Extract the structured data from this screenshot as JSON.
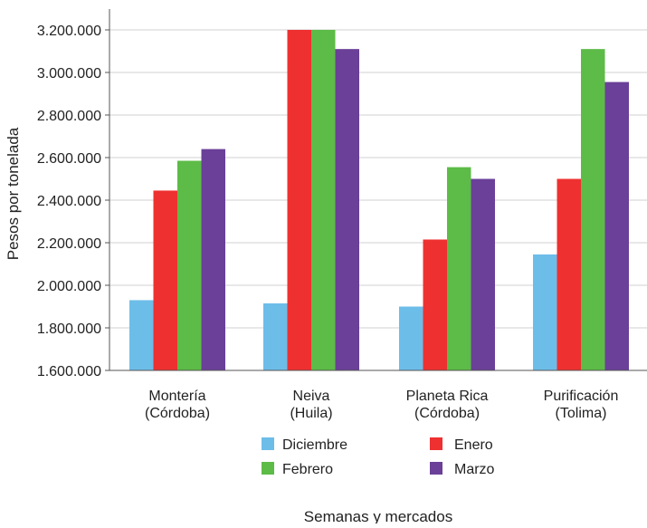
{
  "chart_data": {
    "type": "bar",
    "title": "",
    "xlabel": "Semanas y mercados",
    "ylabel": "Pesos por tonelada",
    "ylim": [
      1600000,
      3200000
    ],
    "yticks": [
      1600000,
      1800000,
      2000000,
      2200000,
      2400000,
      2600000,
      2800000,
      3000000,
      3200000
    ],
    "ytick_labels": [
      "1.600.000",
      "1.800.000",
      "2.000.000",
      "2.200.000",
      "2.400.000",
      "2.600.000",
      "2.800.000",
      "3.000.000",
      "3.200.000"
    ],
    "grid": "horizontal",
    "legend_position": "bottom",
    "categories": [
      [
        "Montería",
        "(Córdoba)"
      ],
      [
        "Neiva",
        "(Huila)"
      ],
      [
        "Planeta Rica",
        "(Córdoba)"
      ],
      [
        "Purificación",
        "(Tolima)"
      ]
    ],
    "series": [
      {
        "name": "Diciembre",
        "color": "#6dbde9",
        "values": [
          1930000,
          1915000,
          1900000,
          2145000
        ]
      },
      {
        "name": "Enero",
        "color": "#ee3030",
        "values": [
          2445000,
          3200000,
          2215000,
          2500000
        ]
      },
      {
        "name": "Febrero",
        "color": "#5dbb47",
        "values": [
          2585000,
          3200000,
          2555000,
          3110000
        ]
      },
      {
        "name": "Marzo",
        "color": "#6a4098",
        "values": [
          2640000,
          3110000,
          2500000,
          2955000
        ]
      }
    ]
  }
}
